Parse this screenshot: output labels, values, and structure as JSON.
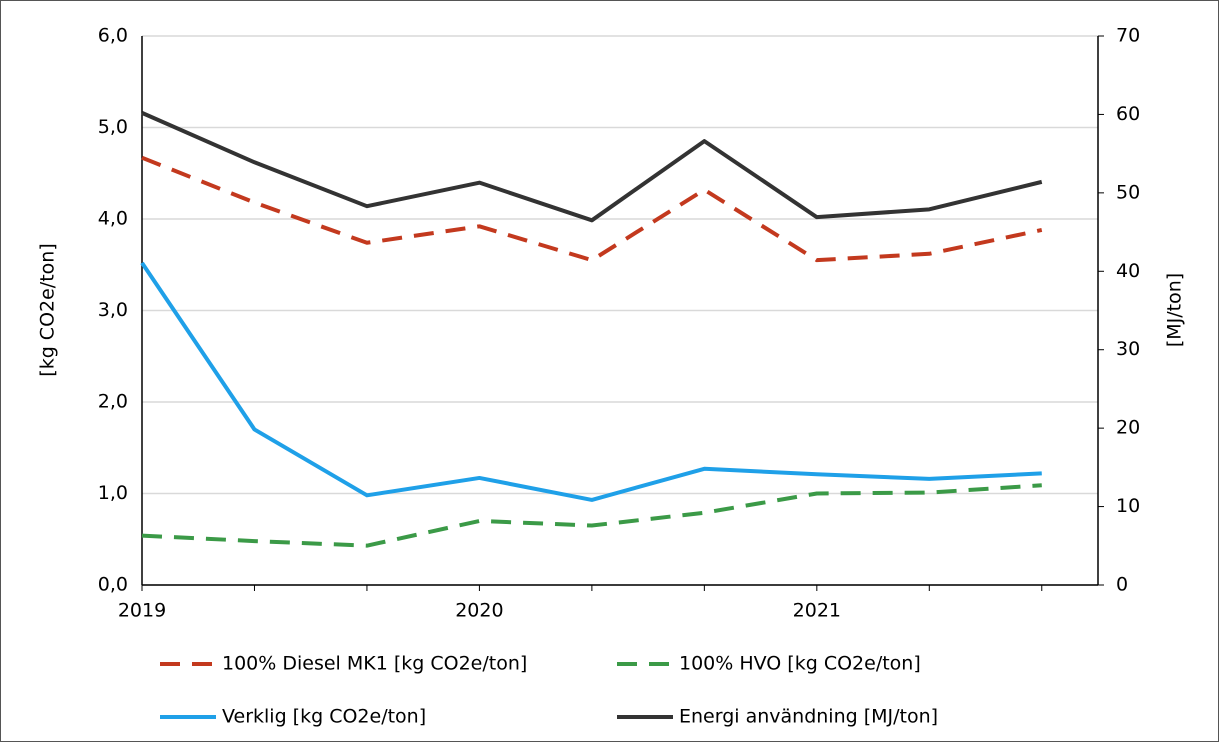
{
  "chart_data": {
    "type": "line",
    "categories": [
      "2019",
      null,
      null,
      "2020",
      null,
      null,
      "2021",
      null,
      null
    ],
    "ylabel": "[kg CO2e/ton]",
    "y2label": "[MJ/ton]",
    "ylim": [
      0,
      6
    ],
    "yticks": [
      {
        "value": 0,
        "label": "0,0"
      },
      {
        "value": 1,
        "label": "1,0"
      },
      {
        "value": 2,
        "label": "2,0"
      },
      {
        "value": 3,
        "label": "3,0"
      },
      {
        "value": 4,
        "label": "4,0"
      },
      {
        "value": 5,
        "label": "5,0"
      },
      {
        "value": 6,
        "label": "6,0"
      }
    ],
    "y2lim": [
      0,
      70
    ],
    "y2ticks": [
      0,
      10,
      20,
      30,
      40,
      50,
      60,
      70
    ],
    "grid": true,
    "legend": "bottom",
    "series": [
      {
        "name": "100% Diesel MK1 [kg CO2e/ton]",
        "color": "#c3391e",
        "style": "dashed",
        "values": [
          4.67,
          4.18,
          3.74,
          3.92,
          3.55,
          4.32,
          3.55,
          3.62,
          3.88
        ]
      },
      {
        "name": "100% HVO [kg CO2e/ton]",
        "color": "#3b9a47",
        "style": "dashed",
        "values": [
          0.54,
          0.48,
          0.43,
          0.7,
          0.65,
          0.79,
          1.0,
          1.01,
          1.09
        ]
      },
      {
        "name": "Verklig [kg CO2e/ton]",
        "color": "#1fa0e8",
        "style": "solid",
        "values": [
          3.52,
          1.7,
          0.98,
          1.17,
          0.93,
          1.27,
          1.21,
          1.16,
          1.22
        ]
      },
      {
        "name": "Energi användning [MJ/ton]",
        "color": "#333333",
        "style": "solid",
        "axis": "y2",
        "values": [
          60.2,
          53.9,
          48.3,
          51.3,
          46.5,
          56.6,
          46.9,
          47.9,
          51.4
        ]
      }
    ]
  }
}
